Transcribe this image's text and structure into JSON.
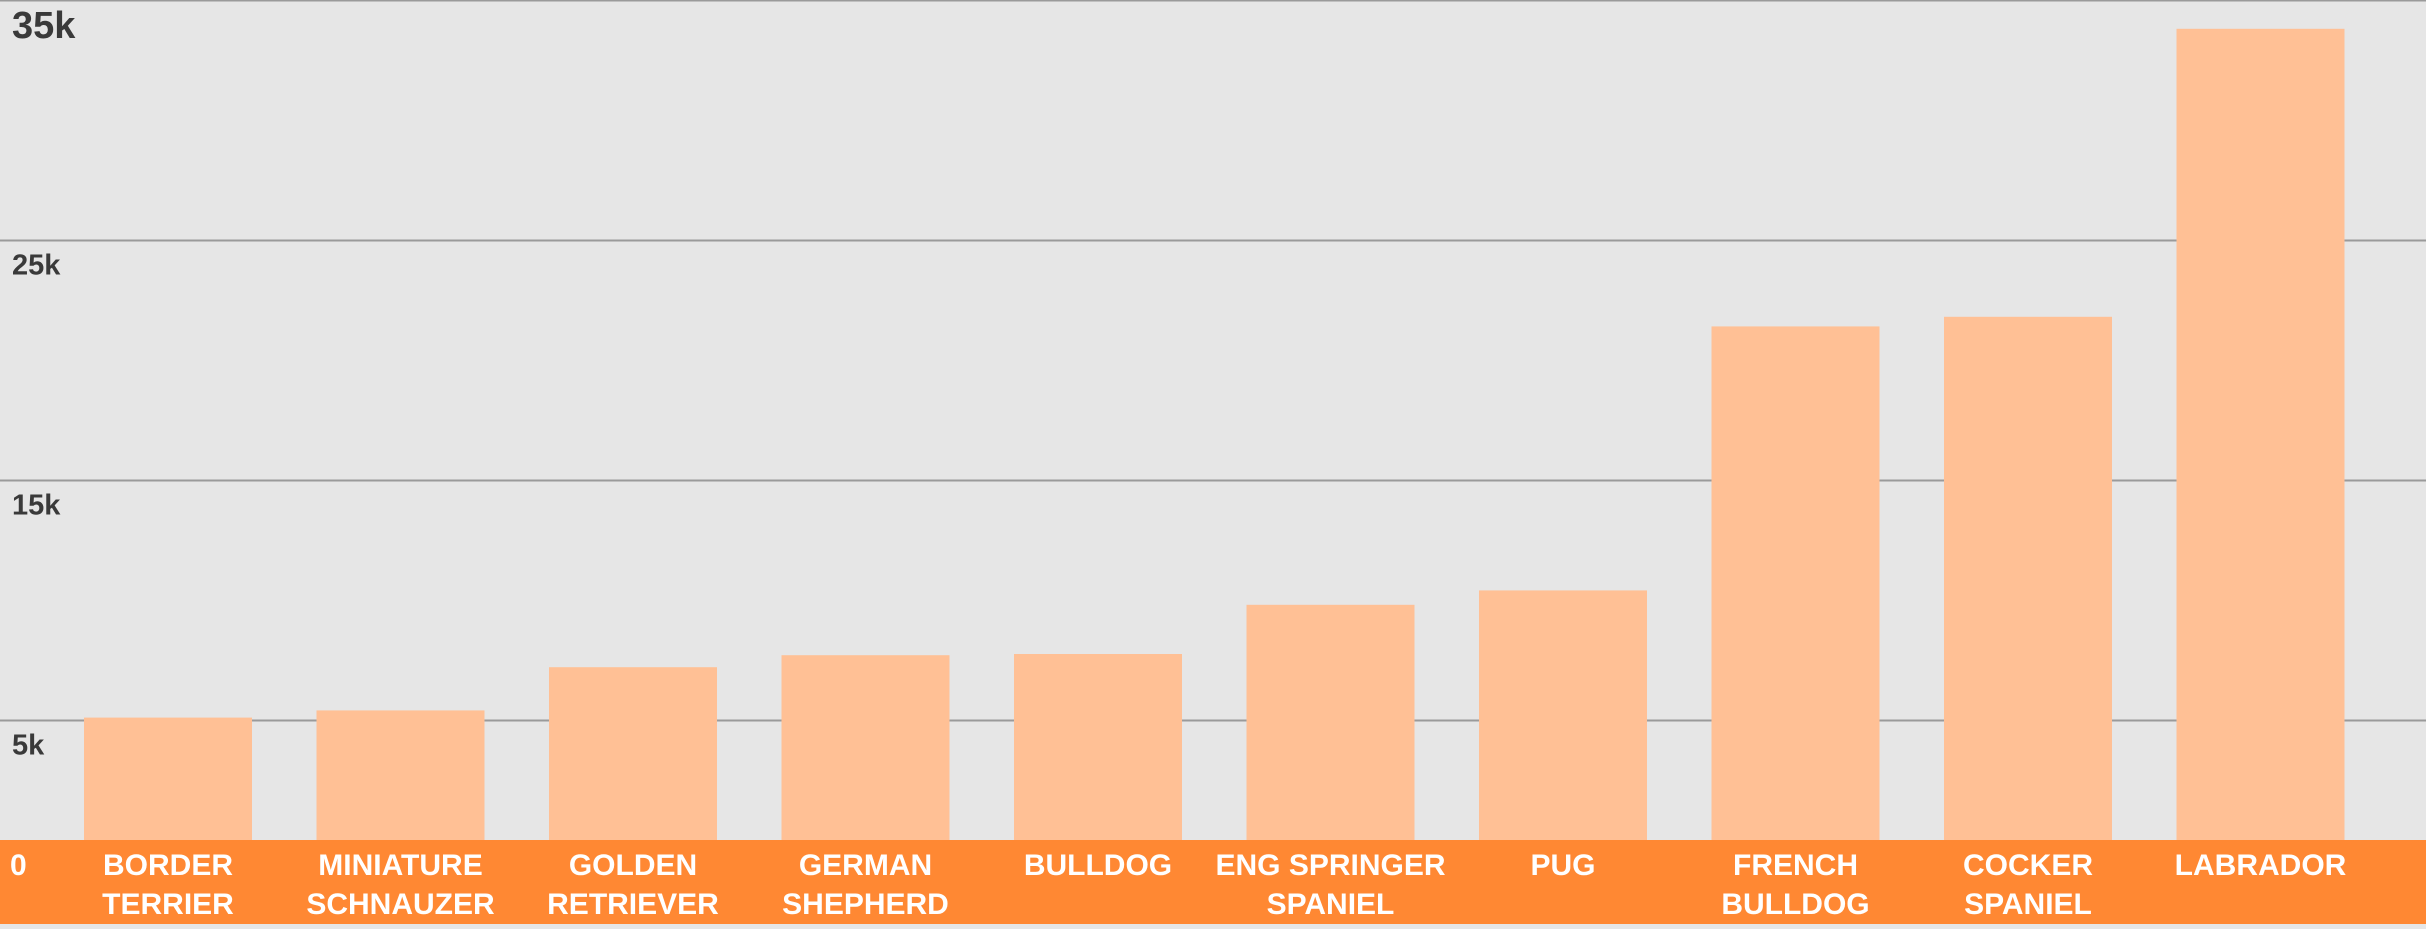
{
  "chart_data": {
    "type": "bar",
    "title": "",
    "xlabel": "",
    "ylabel": "",
    "ylim": [
      0,
      35000
    ],
    "y_ticks": [
      {
        "value": 5000,
        "label": "5k"
      },
      {
        "value": 15000,
        "label": "15k"
      },
      {
        "value": 25000,
        "label": "25k"
      },
      {
        "value": 35000,
        "label": "35k"
      }
    ],
    "zero_label": "0",
    "categories": [
      [
        "BORDER",
        "TERRIER"
      ],
      [
        "MINIATURE",
        "SCHNAUZER"
      ],
      [
        "GOLDEN",
        "RETRIEVER"
      ],
      [
        "GERMAN",
        "SHEPHERD"
      ],
      [
        "BULLDOG"
      ],
      [
        "ENG SPRINGER",
        "SPANIEL"
      ],
      [
        "PUG"
      ],
      [
        "FRENCH",
        "BULLDOG"
      ],
      [
        "COCKER",
        "SPANIEL"
      ],
      [
        "LABRADOR"
      ]
    ],
    "values": [
      5100,
      5400,
      7200,
      7700,
      7750,
      9800,
      10400,
      21400,
      21800,
      33800
    ],
    "colors": {
      "background": "#e6e6e6",
      "bar": "#ffc095",
      "axis_band": "#ff8833",
      "gridline": "#9a9a9a",
      "tick_text": "#3a3a3a",
      "category_text": "#ffffff"
    }
  }
}
